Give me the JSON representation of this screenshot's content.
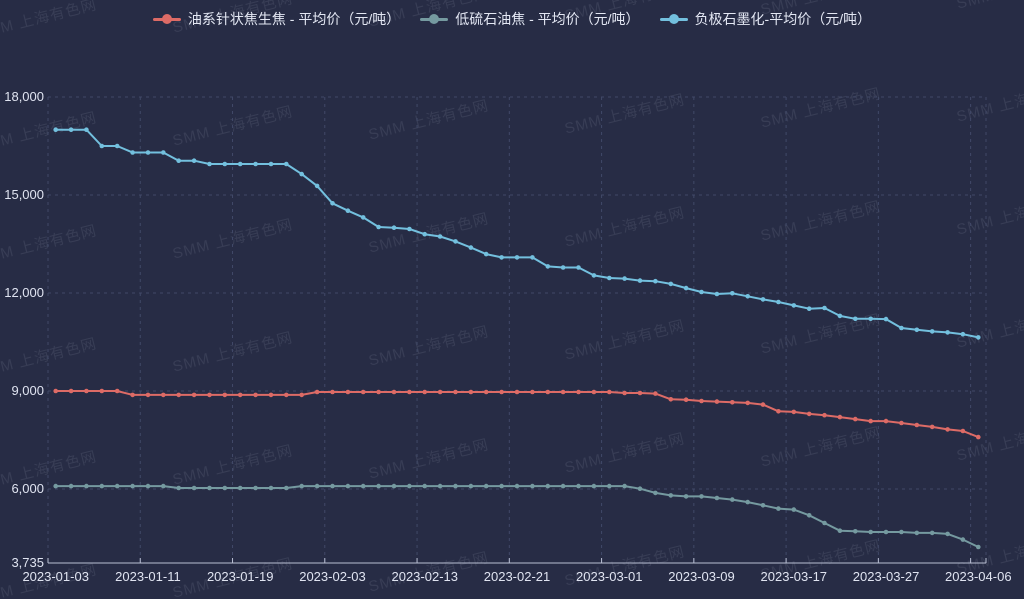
{
  "legend": {
    "items": [
      {
        "label": "油系针状焦生焦 - 平均价（元/吨）",
        "color": "#dd6b66"
      },
      {
        "label": "低硫石油焦 - 平均价（元/吨）",
        "color": "#759aa0"
      },
      {
        "label": "负极石墨化-平均价（元/吨）",
        "color": "#73c0de"
      }
    ]
  },
  "watermark": {
    "text": "SMM 上海有色网"
  },
  "colors": {
    "background": "#272c45",
    "gridline": "#414968",
    "axis_line": "#b9bfd3",
    "axis_text": "#e0e4f1"
  },
  "chart_data": {
    "type": "line",
    "grid": true,
    "legend_position": "top",
    "ylim": [
      3735,
      18000
    ],
    "y_ticks": [
      3735,
      6000,
      9000,
      12000,
      15000,
      18000
    ],
    "y_tick_labels": [
      "3,735",
      "6,000",
      "9,000",
      "12,000",
      "15,000",
      "18,000"
    ],
    "x_tick_labels": [
      "2023-01-03",
      "2023-01-11",
      "2023-01-19",
      "2023-02-03",
      "2023-02-13",
      "2023-02-21",
      "2023-03-01",
      "2023-03-09",
      "2023-03-17",
      "2023-03-27",
      "2023-04-06"
    ],
    "x_tick_every": 6,
    "x": [
      "2023-01-03",
      "2023-01-04",
      "2023-01-05",
      "2023-01-06",
      "2023-01-09",
      "2023-01-10",
      "2023-01-11",
      "2023-01-12",
      "2023-01-13",
      "2023-01-16",
      "2023-01-17",
      "2023-01-18",
      "2023-01-19",
      "2023-01-20",
      "2023-01-30",
      "2023-01-31",
      "2023-02-01",
      "2023-02-02",
      "2023-02-03",
      "2023-02-06",
      "2023-02-07",
      "2023-02-08",
      "2023-02-09",
      "2023-02-10",
      "2023-02-13",
      "2023-02-14",
      "2023-02-15",
      "2023-02-16",
      "2023-02-17",
      "2023-02-20",
      "2023-02-21",
      "2023-02-22",
      "2023-02-23",
      "2023-02-24",
      "2023-02-27",
      "2023-02-28",
      "2023-03-01",
      "2023-03-02",
      "2023-03-03",
      "2023-03-06",
      "2023-03-07",
      "2023-03-08",
      "2023-03-09",
      "2023-03-10",
      "2023-03-13",
      "2023-03-14",
      "2023-03-15",
      "2023-03-16",
      "2023-03-17",
      "2023-03-20",
      "2023-03-21",
      "2023-03-22",
      "2023-03-23",
      "2023-03-24",
      "2023-03-27",
      "2023-03-28",
      "2023-03-29",
      "2023-03-30",
      "2023-03-31",
      "2023-04-03",
      "2023-04-06"
    ],
    "series": [
      {
        "name": "油系针状焦生焦 - 平均价（元/吨）",
        "color": "#dd6b66",
        "values": [
          9000,
          9000,
          9000,
          9000,
          9000,
          8880,
          8880,
          8880,
          8880,
          8880,
          8880,
          8880,
          8880,
          8880,
          8880,
          8880,
          8880,
          8970,
          8970,
          8970,
          8970,
          8970,
          8970,
          8970,
          8970,
          8970,
          8970,
          8970,
          8970,
          8970,
          8970,
          8970,
          8970,
          8970,
          8970,
          8970,
          8970,
          8940,
          8940,
          8920,
          8745,
          8735,
          8695,
          8675,
          8655,
          8635,
          8585,
          8380,
          8360,
          8300,
          8260,
          8200,
          8140,
          8080,
          8080,
          8020,
          7960,
          7900,
          7825,
          7775,
          7590
        ]
      },
      {
        "name": "低硫石油焦 - 平均价（元/吨）",
        "color": "#759aa0",
        "values": [
          6090,
          6090,
          6090,
          6090,
          6090,
          6090,
          6090,
          6090,
          6030,
          6030,
          6030,
          6030,
          6030,
          6030,
          6030,
          6030,
          6090,
          6090,
          6090,
          6090,
          6090,
          6090,
          6090,
          6090,
          6090,
          6090,
          6090,
          6090,
          6090,
          6090,
          6090,
          6090,
          6090,
          6090,
          6090,
          6090,
          6090,
          6090,
          6010,
          5880,
          5805,
          5775,
          5775,
          5725,
          5675,
          5600,
          5500,
          5400,
          5370,
          5195,
          4960,
          4725,
          4705,
          4685,
          4685,
          4685,
          4655,
          4655,
          4625,
          4450,
          4225
        ]
      },
      {
        "name": "负极石墨化-平均价（元/吨）",
        "color": "#73c0de",
        "values": [
          17000,
          17000,
          17000,
          16500,
          16500,
          16300,
          16300,
          16300,
          16050,
          16050,
          15950,
          15950,
          15950,
          15950,
          15950,
          15950,
          15640,
          15280,
          14745,
          14520,
          14315,
          14020,
          14000,
          13960,
          13800,
          13730,
          13580,
          13390,
          13190,
          13090,
          13090,
          13090,
          12815,
          12780,
          12780,
          12540,
          12460,
          12440,
          12380,
          12360,
          12280,
          12150,
          12030,
          11970,
          11990,
          11900,
          11805,
          11725,
          11620,
          11520,
          11540,
          11300,
          11210,
          11210,
          11200,
          10930,
          10875,
          10825,
          10795,
          10740,
          10640
        ]
      }
    ]
  }
}
